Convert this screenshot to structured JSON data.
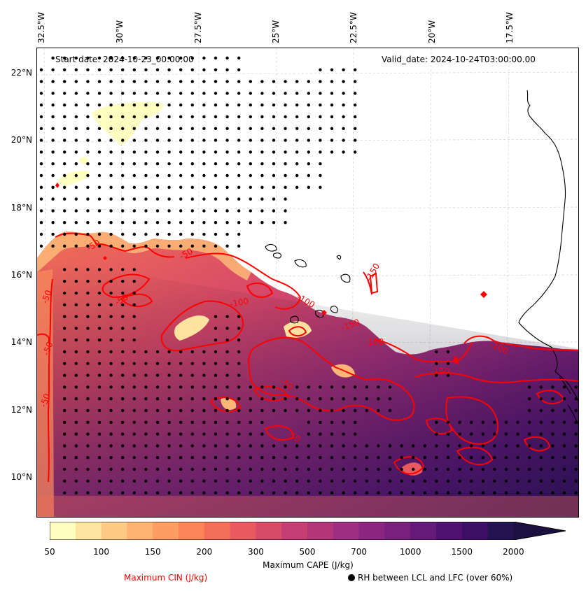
{
  "header": {
    "start_date": "Start date: 2024-10-23_00:00:00",
    "valid_date": "Valid_date: 2024-10-24T03:00:00.00"
  },
  "axes": {
    "lon_labels": [
      "32.5°W",
      "30°W",
      "27.5°W",
      "25°W",
      "22.5°W",
      "20°W",
      "17.5°W"
    ],
    "lat_labels": [
      "22°N",
      "20°N",
      "18°N",
      "16°N",
      "14°N",
      "12°N",
      "10°N"
    ]
  },
  "colorbar": {
    "label": "Maximum CAPE (J/kg)",
    "ticks": [
      "50",
      "100",
      "150",
      "200",
      "300",
      "500",
      "700",
      "1000",
      "1500",
      "2000"
    ],
    "colors": [
      "#fffec0",
      "#fee5a0",
      "#fecb87",
      "#feb373",
      "#fd9c63",
      "#fb8459",
      "#f46d57",
      "#e85a5f",
      "#d84a68",
      "#c53e71",
      "#b2357a",
      "#9e2e7f",
      "#8a267f",
      "#77207c",
      "#631a78",
      "#4f1270",
      "#3b0f64",
      "#231350"
    ]
  },
  "legend": {
    "cin_label": "Maximum CIN (J/kg)",
    "rh_label": "RH between LCL and LFC (over 60%)"
  },
  "contour_labels": [
    "-50",
    "-50",
    "-50",
    "-50",
    "-50",
    "-50",
    "-50",
    "-50",
    "-100",
    "-100",
    "-100",
    "-100",
    "-150",
    "-150",
    "-150"
  ],
  "style": {
    "cin_color": "#ff0000",
    "coast_color": "#000000"
  }
}
